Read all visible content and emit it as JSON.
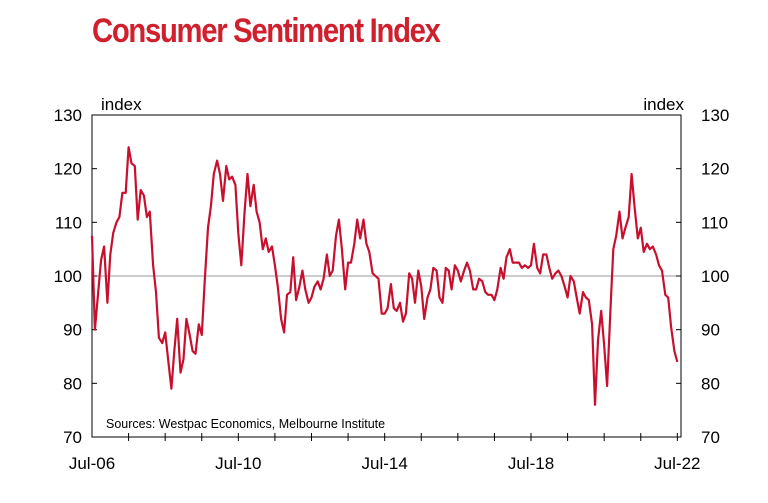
{
  "chart_data": {
    "type": "line",
    "title": "Consumer Sentiment Index",
    "y_unit_left": "index",
    "y_unit_right": "index",
    "ylim": [
      70,
      130
    ],
    "y_ticks": [
      70,
      80,
      90,
      100,
      110,
      120,
      130
    ],
    "x_ticks": [
      {
        "label": "Jul-06",
        "t": 2006.5
      },
      {
        "label": "Jul-10",
        "t": 2010.5
      },
      {
        "label": "Jul-14",
        "t": 2014.5
      },
      {
        "label": "Jul-18",
        "t": 2018.5
      },
      {
        "label": "Jul-22",
        "t": 2022.5
      }
    ],
    "xlim": [
      2006.5,
      2022.6
    ],
    "reference_line": 100,
    "annotation": "Sources: Westpac Economics, Melbourne Institute",
    "line_color": "#c8102e",
    "series": [
      {
        "points": [
          [
            2006.5,
            107.5
          ],
          [
            2006.58,
            90
          ],
          [
            2006.67,
            97
          ],
          [
            2006.75,
            103
          ],
          [
            2006.83,
            105.5
          ],
          [
            2006.92,
            95
          ],
          [
            2007.0,
            104
          ],
          [
            2007.08,
            108
          ],
          [
            2007.17,
            110
          ],
          [
            2007.25,
            111
          ],
          [
            2007.33,
            115.5
          ],
          [
            2007.42,
            115.5
          ],
          [
            2007.5,
            124
          ],
          [
            2007.58,
            121
          ],
          [
            2007.67,
            120.5
          ],
          [
            2007.75,
            110.5
          ],
          [
            2007.83,
            116
          ],
          [
            2007.92,
            115
          ],
          [
            2008.0,
            111
          ],
          [
            2008.08,
            112
          ],
          [
            2008.17,
            102
          ],
          [
            2008.25,
            97
          ],
          [
            2008.33,
            88.5
          ],
          [
            2008.42,
            87.5
          ],
          [
            2008.5,
            89.5
          ],
          [
            2008.58,
            84.5
          ],
          [
            2008.67,
            79
          ],
          [
            2008.75,
            86
          ],
          [
            2008.83,
            92
          ],
          [
            2008.92,
            82
          ],
          [
            2009.0,
            84.5
          ],
          [
            2009.08,
            92
          ],
          [
            2009.17,
            89
          ],
          [
            2009.25,
            86
          ],
          [
            2009.33,
            85.5
          ],
          [
            2009.42,
            91
          ],
          [
            2009.5,
            89
          ],
          [
            2009.58,
            99
          ],
          [
            2009.67,
            109
          ],
          [
            2009.75,
            113
          ],
          [
            2009.83,
            119
          ],
          [
            2009.92,
            121.5
          ],
          [
            2010.0,
            119
          ],
          [
            2010.08,
            114
          ],
          [
            2010.17,
            120.5
          ],
          [
            2010.25,
            118
          ],
          [
            2010.33,
            118.5
          ],
          [
            2010.42,
            117
          ],
          [
            2010.5,
            108
          ],
          [
            2010.58,
            102
          ],
          [
            2010.67,
            112
          ],
          [
            2010.75,
            119
          ],
          [
            2010.83,
            113
          ],
          [
            2010.92,
            117
          ],
          [
            2011.0,
            112
          ],
          [
            2011.08,
            110
          ],
          [
            2011.17,
            105
          ],
          [
            2011.25,
            107
          ],
          [
            2011.33,
            104.5
          ],
          [
            2011.42,
            105.5
          ],
          [
            2011.5,
            102
          ],
          [
            2011.58,
            98
          ],
          [
            2011.67,
            92
          ],
          [
            2011.75,
            89.5
          ],
          [
            2011.83,
            96.5
          ],
          [
            2011.92,
            97
          ],
          [
            2012.0,
            103.5
          ],
          [
            2012.08,
            95.5
          ],
          [
            2012.17,
            98
          ],
          [
            2012.25,
            101
          ],
          [
            2012.33,
            97.5
          ],
          [
            2012.42,
            95
          ],
          [
            2012.5,
            96
          ],
          [
            2012.58,
            98
          ],
          [
            2012.67,
            99
          ],
          [
            2012.75,
            97.5
          ],
          [
            2012.83,
            99.5
          ],
          [
            2012.92,
            104
          ],
          [
            2013.0,
            100
          ],
          [
            2013.08,
            101
          ],
          [
            2013.17,
            107.5
          ],
          [
            2013.25,
            110.5
          ],
          [
            2013.33,
            105
          ],
          [
            2013.42,
            97.5
          ],
          [
            2013.5,
            102.5
          ],
          [
            2013.58,
            102.5
          ],
          [
            2013.67,
            106
          ],
          [
            2013.75,
            110.5
          ],
          [
            2013.83,
            107
          ],
          [
            2013.92,
            110.5
          ],
          [
            2014.0,
            106
          ],
          [
            2014.08,
            104.5
          ],
          [
            2014.17,
            100.5
          ],
          [
            2014.25,
            100
          ],
          [
            2014.33,
            99.5
          ],
          [
            2014.42,
            93
          ],
          [
            2014.5,
            93
          ],
          [
            2014.58,
            94
          ],
          [
            2014.67,
            98.5
          ],
          [
            2014.75,
            94
          ],
          [
            2014.83,
            93.5
          ],
          [
            2014.92,
            95
          ],
          [
            2015.0,
            91.5
          ],
          [
            2015.08,
            93
          ],
          [
            2015.17,
            100.5
          ],
          [
            2015.25,
            99.5
          ],
          [
            2015.33,
            95
          ],
          [
            2015.42,
            101
          ],
          [
            2015.5,
            98
          ],
          [
            2015.58,
            92
          ],
          [
            2015.67,
            96
          ],
          [
            2015.75,
            97.5
          ],
          [
            2015.83,
            101.5
          ],
          [
            2015.92,
            101
          ],
          [
            2016.0,
            96
          ],
          [
            2016.08,
            95
          ],
          [
            2016.17,
            101.5
          ],
          [
            2016.25,
            101
          ],
          [
            2016.33,
            97.5
          ],
          [
            2016.42,
            102
          ],
          [
            2016.5,
            101
          ],
          [
            2016.58,
            99
          ],
          [
            2016.67,
            101
          ],
          [
            2016.75,
            102.5
          ],
          [
            2016.83,
            101
          ],
          [
            2016.92,
            97.5
          ],
          [
            2017.0,
            97.5
          ],
          [
            2017.08,
            99.5
          ],
          [
            2017.17,
            99
          ],
          [
            2017.25,
            97
          ],
          [
            2017.33,
            96.5
          ],
          [
            2017.42,
            96.5
          ],
          [
            2017.5,
            95.5
          ],
          [
            2017.58,
            97.5
          ],
          [
            2017.67,
            101.5
          ],
          [
            2017.75,
            99.5
          ],
          [
            2017.83,
            103.5
          ],
          [
            2017.92,
            105
          ],
          [
            2018.0,
            102.5
          ],
          [
            2018.08,
            102.5
          ],
          [
            2018.17,
            102.5
          ],
          [
            2018.25,
            101.5
          ],
          [
            2018.33,
            102
          ],
          [
            2018.42,
            101.5
          ],
          [
            2018.5,
            102
          ],
          [
            2018.58,
            106
          ],
          [
            2018.67,
            101.5
          ],
          [
            2018.75,
            100.5
          ],
          [
            2018.83,
            104
          ],
          [
            2018.92,
            104
          ],
          [
            2019.0,
            101.5
          ],
          [
            2019.08,
            99.5
          ],
          [
            2019.17,
            100.5
          ],
          [
            2019.25,
            101
          ],
          [
            2019.33,
            100
          ],
          [
            2019.42,
            98
          ],
          [
            2019.5,
            96
          ],
          [
            2019.58,
            100
          ],
          [
            2019.67,
            99
          ],
          [
            2019.75,
            96
          ],
          [
            2019.83,
            93
          ],
          [
            2019.92,
            97
          ],
          [
            2020.0,
            96
          ],
          [
            2020.08,
            95.5
          ],
          [
            2020.17,
            91
          ],
          [
            2020.25,
            76
          ],
          [
            2020.33,
            88
          ],
          [
            2020.42,
            93.5
          ],
          [
            2020.5,
            87
          ],
          [
            2020.58,
            79.5
          ],
          [
            2020.67,
            93.5
          ],
          [
            2020.75,
            105
          ],
          [
            2020.83,
            107.5
          ],
          [
            2020.92,
            112
          ],
          [
            2021.0,
            107
          ],
          [
            2021.08,
            109
          ],
          [
            2021.17,
            111
          ],
          [
            2021.25,
            119
          ],
          [
            2021.33,
            113
          ],
          [
            2021.42,
            107
          ],
          [
            2021.5,
            109
          ],
          [
            2021.58,
            104.5
          ],
          [
            2021.67,
            106
          ],
          [
            2021.75,
            105
          ],
          [
            2021.83,
            105.5
          ],
          [
            2021.92,
            104
          ],
          [
            2022.0,
            102
          ],
          [
            2022.08,
            101
          ],
          [
            2022.17,
            96.5
          ],
          [
            2022.25,
            96
          ],
          [
            2022.33,
            90.5
          ],
          [
            2022.42,
            86
          ],
          [
            2022.5,
            84
          ]
        ]
      }
    ]
  }
}
